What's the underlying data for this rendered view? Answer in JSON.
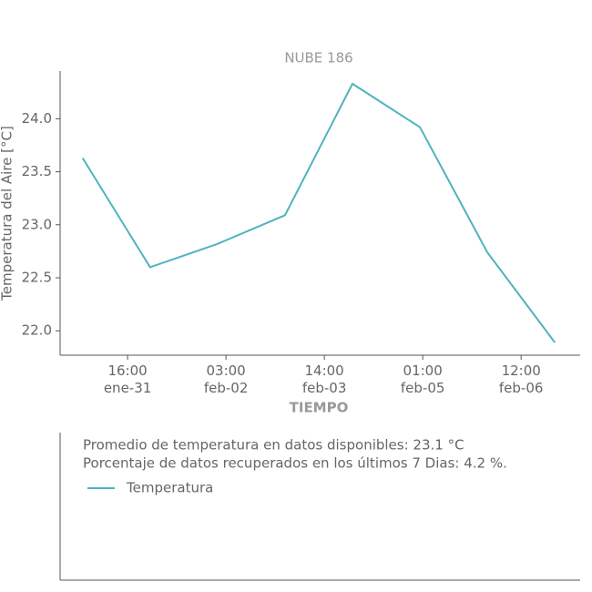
{
  "chart_data": {
    "type": "line",
    "title": "NUBE 186",
    "x_label": "TIEMPO",
    "y_label": "Temperatura del Aire [°C]",
    "x": [
      "ene-31 00:00",
      "feb-01 00:00",
      "feb-02 00:00",
      "feb-03 00:00",
      "feb-04 00:00",
      "feb-05 00:00",
      "feb-06 00:00",
      "feb-07 00:00"
    ],
    "series": [
      {
        "name": "Temperatura",
        "color": "#4fb3bf",
        "values": [
          23.63,
          22.6,
          22.82,
          23.09,
          24.33,
          23.92,
          22.74,
          21.89
        ]
      }
    ],
    "xlim": [
      "ene-30 16:00",
      "feb-07 09:00"
    ],
    "xticks": [
      {
        "value": "ene-31 16:00",
        "label": "16:00\nene-31"
      },
      {
        "value": "feb-02 03:00",
        "label": "03:00\nfeb-02"
      },
      {
        "value": "feb-03 14:00",
        "label": "14:00\nfeb-03"
      },
      {
        "value": "feb-05 01:00",
        "label": "01:00\nfeb-05"
      },
      {
        "value": "feb-06 12:00",
        "label": "12:00\nfeb-06"
      }
    ],
    "ylim": [
      21.77,
      24.45
    ],
    "yticks": [
      {
        "value": 22,
        "label": "22.0"
      },
      {
        "value": 22.5,
        "label": "22.5"
      },
      {
        "value": 23,
        "label": "23.0"
      },
      {
        "value": 23.5,
        "label": "23.5"
      },
      {
        "value": 24,
        "label": "24.0"
      }
    ],
    "annotations": [
      "Promedio de temperatura en datos disponibles: 23.1 °C",
      "Porcentaje de datos recuperados en los últimos 7 Dias: 4.2 %."
    ]
  }
}
